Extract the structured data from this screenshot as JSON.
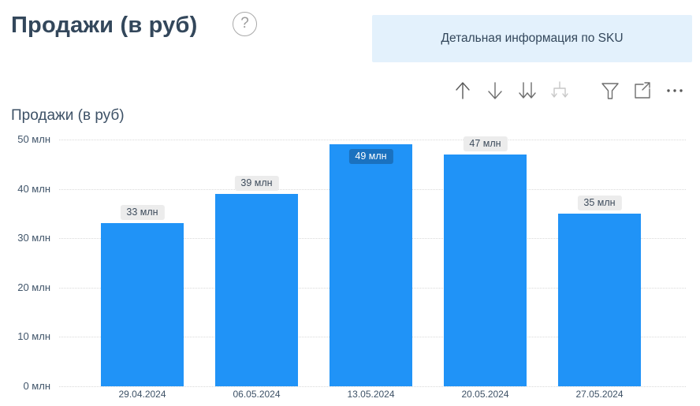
{
  "header": {
    "title": "Продажи (в руб)",
    "help_icon": "?",
    "sku_button_label": "Детальная информация по SKU"
  },
  "toolbar": {
    "icons": [
      {
        "name": "drill-up-icon",
        "disabled": false
      },
      {
        "name": "drill-down-icon",
        "disabled": false
      },
      {
        "name": "go-to-next-level-icon",
        "disabled": false
      },
      {
        "name": "expand-all-down-icon",
        "disabled": true
      },
      {
        "name": "filter-icon",
        "disabled": false
      },
      {
        "name": "focus-mode-icon",
        "disabled": false
      },
      {
        "name": "more-options-icon",
        "disabled": false
      }
    ]
  },
  "chart_data": {
    "type": "bar",
    "title": "Продажи (в руб)",
    "categories": [
      "29.04.2024",
      "06.05.2024",
      "13.05.2024",
      "20.05.2024",
      "27.05.2024"
    ],
    "values": [
      33,
      39,
      49,
      47,
      35
    ],
    "value_labels": [
      "33 млн",
      "39 млн",
      "49 млн",
      "47 млн",
      "35 млн"
    ],
    "value_label_inside": [
      false,
      false,
      true,
      false,
      false
    ],
    "yticks": [
      {
        "value": 0,
        "label": "0 млн"
      },
      {
        "value": 10,
        "label": "10 млн"
      },
      {
        "value": 20,
        "label": "20 млн"
      },
      {
        "value": 30,
        "label": "30 млн"
      },
      {
        "value": 40,
        "label": "40 млн"
      },
      {
        "value": 50,
        "label": "50 млн"
      }
    ],
    "ylim": [
      0,
      50
    ],
    "xlabel": "",
    "ylabel": "",
    "grid": "dotted-horizontal",
    "legend": "none",
    "colors": {
      "bar": "#2093F7",
      "value_label_bg": "#ECECEC",
      "value_label_text": "#3E4C5C",
      "inside_label_text": "#FFFFFF",
      "axis_text": "#42566B",
      "gridline": "#D9D9D9",
      "accent_button_bg": "#E3F1FC",
      "title_text": "#33475B"
    }
  }
}
